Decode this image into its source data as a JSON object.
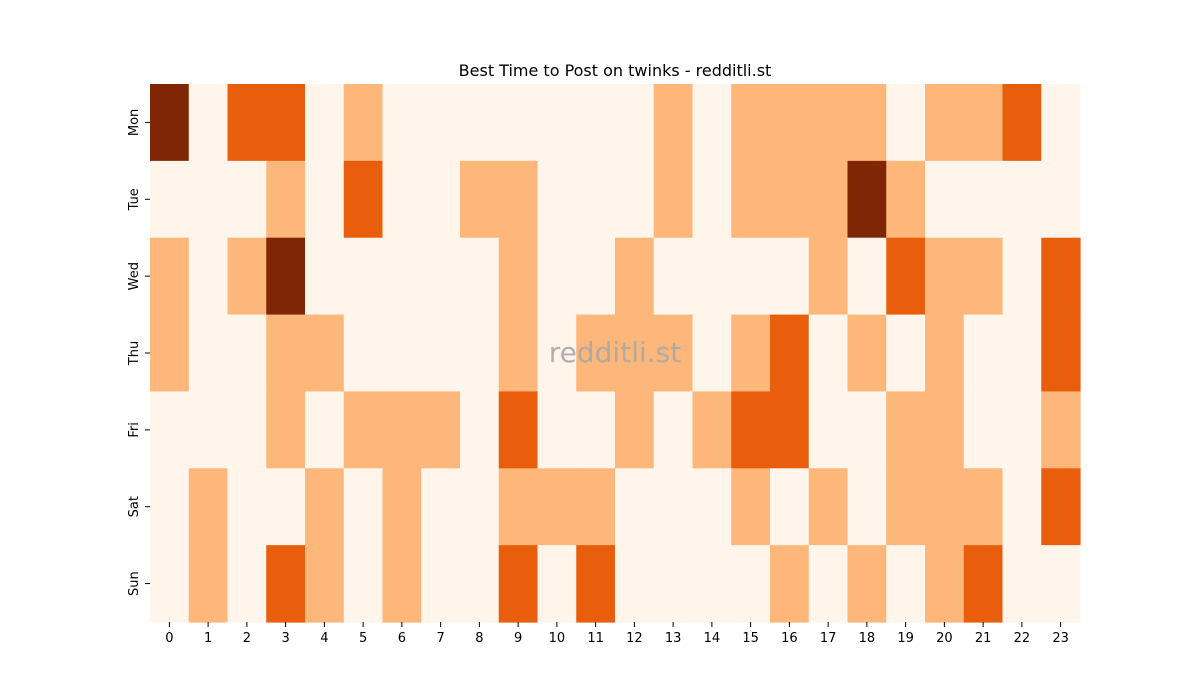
{
  "chart_data": {
    "type": "heatmap",
    "title": "Best Time to Post on twinks - redditli.st",
    "watermark": "redditli.st",
    "x_labels": [
      "0",
      "1",
      "2",
      "3",
      "4",
      "5",
      "6",
      "7",
      "8",
      "9",
      "10",
      "11",
      "12",
      "13",
      "14",
      "15",
      "16",
      "17",
      "18",
      "19",
      "20",
      "21",
      "22",
      "23"
    ],
    "y_labels": [
      "Mon",
      "Tue",
      "Wed",
      "Thu",
      "Fri",
      "Sat",
      "Sun"
    ],
    "values": [
      [
        3,
        0,
        2,
        2,
        0,
        1,
        0,
        0,
        0,
        0,
        0,
        0,
        0,
        1,
        0,
        1,
        1,
        1,
        1,
        0,
        1,
        1,
        2,
        0
      ],
      [
        0,
        0,
        0,
        1,
        0,
        2,
        0,
        0,
        1,
        1,
        0,
        0,
        0,
        1,
        0,
        1,
        1,
        1,
        3,
        1,
        0,
        0,
        0,
        0
      ],
      [
        1,
        0,
        1,
        3,
        0,
        0,
        0,
        0,
        0,
        1,
        0,
        0,
        1,
        0,
        0,
        0,
        0,
        1,
        0,
        2,
        1,
        1,
        0,
        2
      ],
      [
        1,
        0,
        0,
        1,
        1,
        0,
        0,
        0,
        0,
        1,
        0,
        1,
        1,
        1,
        0,
        1,
        2,
        0,
        1,
        0,
        1,
        0,
        0,
        2
      ],
      [
        0,
        0,
        0,
        1,
        0,
        1,
        1,
        1,
        0,
        2,
        0,
        0,
        1,
        0,
        1,
        2,
        2,
        0,
        0,
        1,
        1,
        0,
        0,
        1
      ],
      [
        0,
        1,
        0,
        0,
        1,
        0,
        1,
        0,
        0,
        1,
        1,
        1,
        0,
        0,
        0,
        1,
        0,
        1,
        0,
        1,
        1,
        1,
        0,
        2
      ],
      [
        0,
        1,
        0,
        2,
        1,
        0,
        1,
        0,
        0,
        2,
        0,
        2,
        0,
        0,
        0,
        0,
        1,
        0,
        1,
        0,
        1,
        2,
        0,
        0
      ]
    ],
    "value_range": [
      0,
      3
    ],
    "colors": [
      "#fff5eb",
      "#fdb77a",
      "#e95e0d",
      "#7f2704"
    ],
    "colormap": "Oranges",
    "legend": "none"
  }
}
